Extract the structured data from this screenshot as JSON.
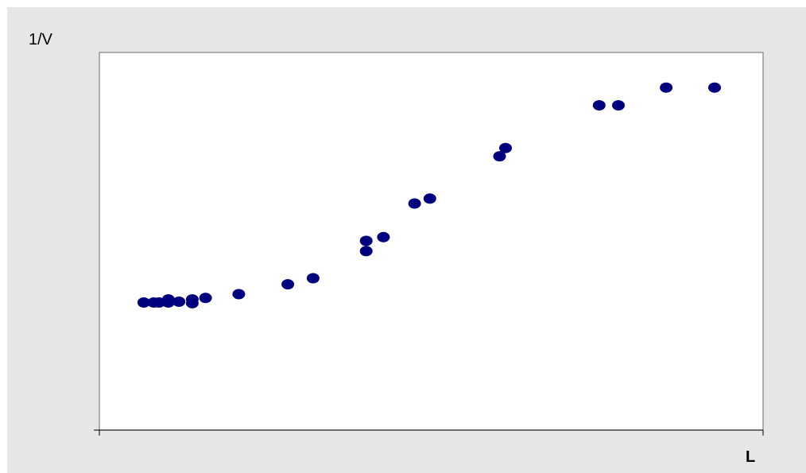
{
  "chart_data": {
    "type": "scatter",
    "title": "",
    "ylabel": "1/V",
    "xlabel": "L",
    "xlim": [
      0,
      100
    ],
    "ylim": [
      0,
      100
    ],
    "grid": false,
    "legend": "none",
    "series": [
      {
        "color": "#00007f",
        "points": [
          {
            "x": 6.7,
            "y": 33.8
          },
          {
            "x": 8.2,
            "y": 33.8
          },
          {
            "x": 9.0,
            "y": 33.8
          },
          {
            "x": 10.4,
            "y": 34.6
          },
          {
            "x": 10.4,
            "y": 33.8
          },
          {
            "x": 12.0,
            "y": 34.0
          },
          {
            "x": 14.0,
            "y": 34.6
          },
          {
            "x": 14.0,
            "y": 33.6
          },
          {
            "x": 16.0,
            "y": 35.0
          },
          {
            "x": 21.0,
            "y": 36.0
          },
          {
            "x": 28.4,
            "y": 38.6
          },
          {
            "x": 32.2,
            "y": 40.2
          },
          {
            "x": 40.2,
            "y": 47.4
          },
          {
            "x": 40.2,
            "y": 50.1
          },
          {
            "x": 42.8,
            "y": 51.1
          },
          {
            "x": 47.5,
            "y": 60.0
          },
          {
            "x": 49.8,
            "y": 61.3
          },
          {
            "x": 60.3,
            "y": 72.5
          },
          {
            "x": 61.2,
            "y": 74.7
          },
          {
            "x": 75.3,
            "y": 86.0
          },
          {
            "x": 78.2,
            "y": 86.0
          },
          {
            "x": 85.4,
            "y": 90.7
          },
          {
            "x": 92.7,
            "y": 90.7
          }
        ]
      }
    ]
  }
}
